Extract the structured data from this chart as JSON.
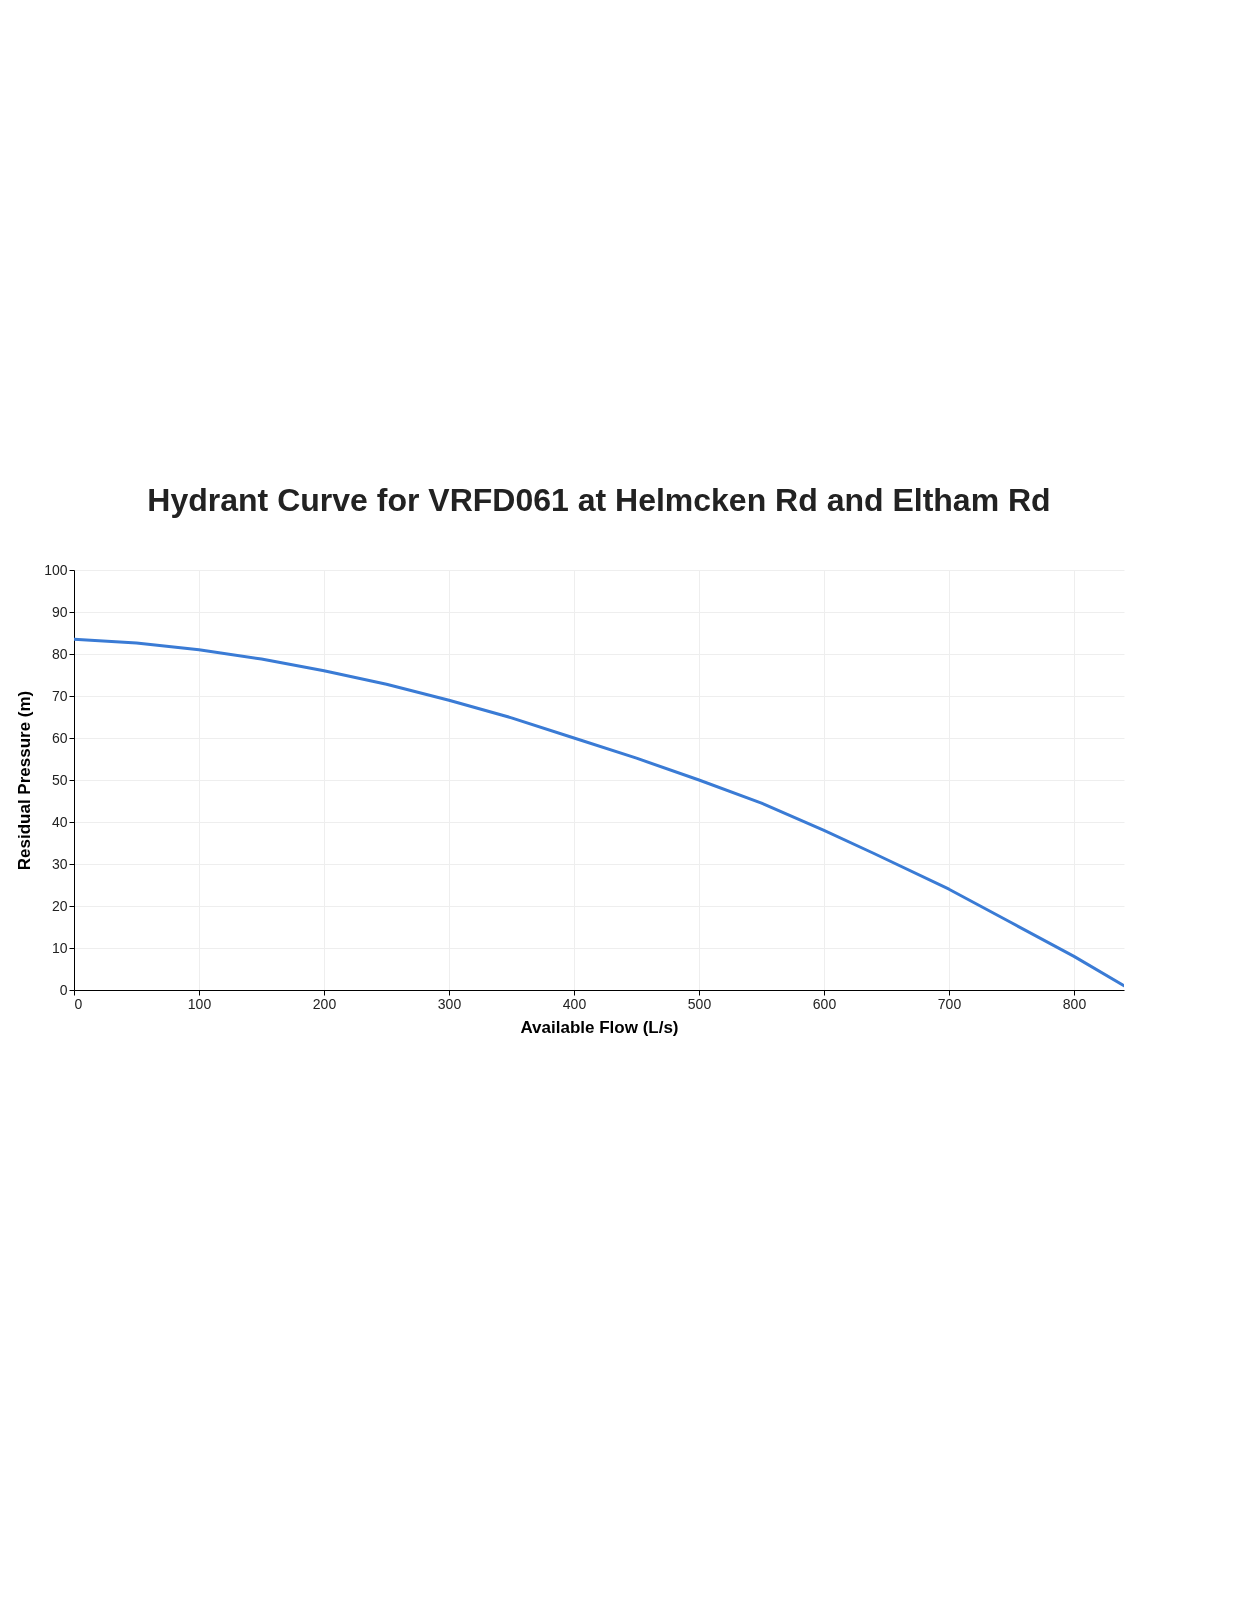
{
  "chart_data": {
    "type": "line",
    "title": "Hydrant Curve for VRFD061 at Helmcken Rd and Eltham Rd",
    "xlabel": "Available Flow (L/s)",
    "ylabel": "Residual Pressure (m)",
    "x": [
      0,
      50,
      100,
      150,
      200,
      250,
      300,
      350,
      400,
      450,
      500,
      550,
      600,
      640,
      700,
      750,
      800,
      840
    ],
    "series": [
      {
        "color": "#3a7bd5",
        "values": [
          83.5,
          82.6,
          81,
          78.8,
          76,
          72.8,
          69,
          64.8,
          60,
          55.2,
          50,
          44.5,
          38,
          32.5,
          24,
          16,
          8,
          1
        ]
      }
    ],
    "xlim": [
      0,
      840
    ],
    "xticks": [
      0,
      100,
      200,
      300,
      400,
      500,
      600,
      700,
      800
    ],
    "ylim": [
      0,
      100
    ],
    "yticks": [
      0,
      10,
      20,
      30,
      40,
      50,
      60,
      70,
      80,
      90,
      100
    ],
    "grid": true
  }
}
